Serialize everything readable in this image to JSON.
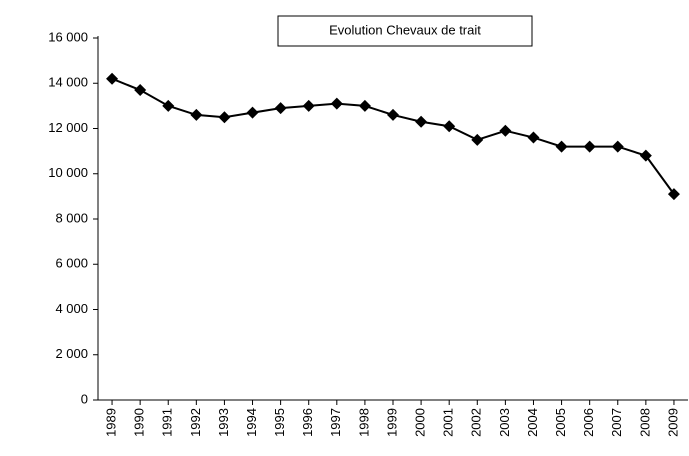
{
  "chart_data": {
    "type": "line",
    "title": "Evolution Chevaux de trait",
    "categories": [
      "1989",
      "1990",
      "1991",
      "1992",
      "1993",
      "1994",
      "1995",
      "1996",
      "1997",
      "1998",
      "1999",
      "2000",
      "2001",
      "2002",
      "2003",
      "2004",
      "2005",
      "2006",
      "2007",
      "2008",
      "2009"
    ],
    "series": [
      {
        "name": "Chevaux de trait",
        "color": "#000000",
        "values": [
          14200,
          13700,
          13000,
          12600,
          12500,
          12700,
          12900,
          13000,
          13100,
          13000,
          12600,
          12300,
          12100,
          11500,
          11900,
          11600,
          11200,
          11200,
          11200,
          10800,
          9100
        ]
      }
    ],
    "ylim": [
      0,
      16000
    ],
    "yticks": [
      {
        "value": 0,
        "label": "0"
      },
      {
        "value": 2000,
        "label": "2 000"
      },
      {
        "value": 4000,
        "label": "4 000"
      },
      {
        "value": 6000,
        "label": "6 000"
      },
      {
        "value": 8000,
        "label": "8 000"
      },
      {
        "value": 10000,
        "label": "10 000"
      },
      {
        "value": 12000,
        "label": "12 000"
      },
      {
        "value": 14000,
        "label": "14 000"
      },
      {
        "value": 16000,
        "label": "16 000"
      }
    ],
    "grid": false
  }
}
